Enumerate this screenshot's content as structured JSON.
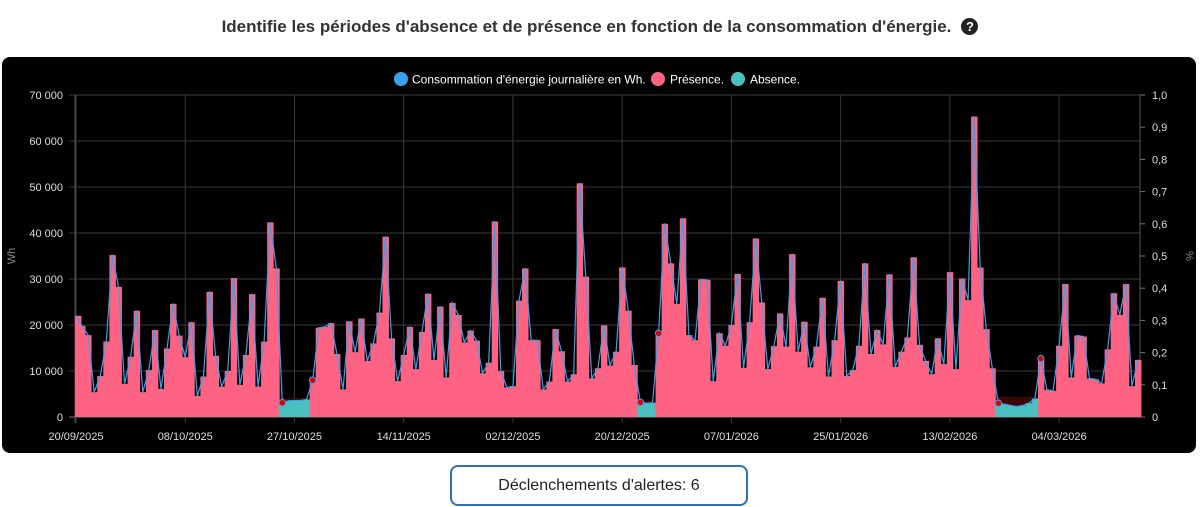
{
  "header": {
    "title": "Identifie les périodes d'absence et de présence en fonction de la consommation d'énergie.",
    "help_icon": "question-circle-icon",
    "help_glyph": "?"
  },
  "alerts": {
    "label": "Déclenchements d'alertes: 6",
    "count": 6
  },
  "colors": {
    "line": "#36a2eb",
    "presence": "#ff6384",
    "absence": "#4bc0c0",
    "alert_dot": "#e00000",
    "absence_band": "#3a0606"
  },
  "chart_data": {
    "type": "bar+line",
    "title": "",
    "legend": [
      "Consommation d'énergie journalière en Wh.",
      "Présence.",
      "Absence."
    ],
    "legend_position": "top",
    "ylabel": "Wh",
    "y2label": "%",
    "ylim": [
      0,
      70000
    ],
    "y2lim": [
      0,
      1
    ],
    "y_ticks": [
      "0",
      "10 000",
      "20 000",
      "30 000",
      "40 000",
      "50 000",
      "60 000",
      "70 000"
    ],
    "y2_ticks": [
      "0",
      "0,1",
      "0,2",
      "0,3",
      "0,4",
      "0,5",
      "0,6",
      "0,7",
      "0,8",
      "0,9",
      "1,0"
    ],
    "x_ticks": [
      {
        "index": 0,
        "label": "20/09/2025"
      },
      {
        "index": 18,
        "label": "08/10/2025"
      },
      {
        "index": 36,
        "label": "27/10/2025"
      },
      {
        "index": 54,
        "label": "14/11/2025"
      },
      {
        "index": 72,
        "label": "02/12/2025"
      },
      {
        "index": 90,
        "label": "20/12/2025"
      },
      {
        "index": 108,
        "label": "07/01/2026"
      },
      {
        "index": 126,
        "label": "25/01/2026"
      },
      {
        "index": 144,
        "label": "13/02/2026"
      },
      {
        "index": 162,
        "label": "04/03/2026"
      }
    ],
    "grid": true,
    "values": [
      22000,
      19800,
      17800,
      5400,
      8900,
      16400,
      35200,
      28300,
      7200,
      13100,
      23100,
      5400,
      10200,
      18900,
      6100,
      14900,
      24600,
      17700,
      13000,
      20600,
      4600,
      8800,
      27200,
      13300,
      6600,
      10000,
      30200,
      7000,
      13500,
      26700,
      6600,
      16400,
      42300,
      32300,
      3100,
      3500,
      3600,
      3600,
      3800,
      8000,
      19400,
      19600,
      20400,
      13700,
      6000,
      20800,
      14100,
      21400,
      12200,
      16000,
      22700,
      39200,
      17100,
      7800,
      13500,
      19600,
      10400,
      18500,
      26800,
      12400,
      24000,
      8600,
      24800,
      22200,
      16200,
      18800,
      16600,
      9500,
      11800,
      42500,
      10000,
      6400,
      6700,
      25300,
      32300,
      16700,
      16700,
      6000,
      7700,
      19100,
      14300,
      7700,
      9300,
      50800,
      30500,
      8400,
      10600,
      19900,
      11200,
      14200,
      32500,
      23100,
      11300,
      3200,
      3000,
      3100,
      18200,
      42000,
      33400,
      24600,
      43200,
      17800,
      16700,
      29900,
      29800,
      7800,
      18200,
      15500,
      20000,
      31100,
      10700,
      20600,
      38800,
      24900,
      10400,
      15400,
      22500,
      15300,
      35400,
      14200,
      20700,
      10800,
      15300,
      25900,
      8800,
      16700,
      29600,
      8900,
      10200,
      15500,
      33400,
      13700,
      18900,
      15800,
      31000,
      10900,
      14200,
      17300,
      34700,
      15700,
      12200,
      9300,
      17100,
      11500,
      31500,
      10400,
      30100,
      25400,
      65300,
      32500,
      19100,
      10600,
      3000,
      2800,
      2500,
      2300,
      2500,
      3000,
      4000,
      12700,
      5900,
      5700,
      15500,
      28900,
      8600,
      17700,
      17500,
      8400,
      8200,
      7300,
      14700,
      26900,
      22200,
      28900,
      6700,
      12400
    ],
    "absence_periods": [
      [
        34,
        38
      ],
      [
        93,
        95
      ],
      [
        152,
        158
      ]
    ],
    "alert_points": [
      34,
      39,
      93,
      96,
      152,
      159
    ]
  }
}
